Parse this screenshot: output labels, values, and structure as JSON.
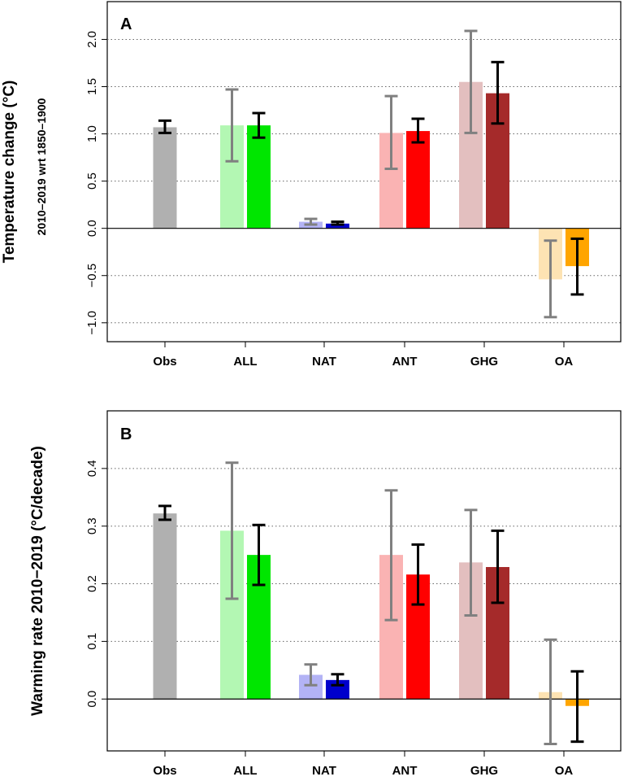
{
  "chart_data": [
    {
      "type": "bar",
      "panel_label": "A",
      "ylabel": "Temperature change (°C)",
      "ylabel_sub": "2010–2019  wrt  1850–1900",
      "ylim": [
        -1.2,
        2.4
      ],
      "yticks": [
        -1.0,
        -0.5,
        0.0,
        0.5,
        1.0,
        1.5,
        2.0
      ],
      "ytick_labels": [
        "−1.0",
        "−0.5",
        "0.0",
        "0.5",
        "1.0",
        "1.5",
        "2.0"
      ],
      "grid": "horizontal dotted",
      "categories": [
        "Obs",
        "ALL",
        "NAT",
        "ANT",
        "GHG",
        "OA"
      ],
      "bars": [
        {
          "category": "Obs",
          "slot": "center",
          "value": 1.07,
          "lo": 1.01,
          "hi": 1.14,
          "color": "#b0b0b0",
          "errcolor": "#000000"
        },
        {
          "category": "ALL",
          "slot": "left",
          "value": 1.09,
          "lo": 0.71,
          "hi": 1.47,
          "color": "#b3f7b3",
          "errcolor": "#808080"
        },
        {
          "category": "ALL",
          "slot": "right",
          "value": 1.09,
          "lo": 0.96,
          "hi": 1.22,
          "color": "#00e600",
          "errcolor": "#000000"
        },
        {
          "category": "NAT",
          "slot": "left",
          "value": 0.07,
          "lo": 0.04,
          "hi": 0.1,
          "color": "#b3b3f5",
          "errcolor": "#808080"
        },
        {
          "category": "NAT",
          "slot": "right",
          "value": 0.05,
          "lo": 0.04,
          "hi": 0.07,
          "color": "#0000cc",
          "errcolor": "#000000"
        },
        {
          "category": "ANT",
          "slot": "left",
          "value": 1.01,
          "lo": 0.63,
          "hi": 1.4,
          "color": "#fab3b3",
          "errcolor": "#808080"
        },
        {
          "category": "ANT",
          "slot": "right",
          "value": 1.03,
          "lo": 0.91,
          "hi": 1.16,
          "color": "#ff0000",
          "errcolor": "#000000"
        },
        {
          "category": "GHG",
          "slot": "left",
          "value": 1.55,
          "lo": 1.01,
          "hi": 2.09,
          "color": "#e3bfbf",
          "errcolor": "#808080"
        },
        {
          "category": "GHG",
          "slot": "right",
          "value": 1.43,
          "lo": 1.11,
          "hi": 1.76,
          "color": "#a52a2a",
          "errcolor": "#000000"
        },
        {
          "category": "OA",
          "slot": "left",
          "value": -0.54,
          "lo": -0.94,
          "hi": -0.13,
          "color": "#fde3b3",
          "errcolor": "#808080"
        },
        {
          "category": "OA",
          "slot": "right",
          "value": -0.4,
          "lo": -0.7,
          "hi": -0.11,
          "color": "#ffa500",
          "errcolor": "#000000"
        }
      ]
    },
    {
      "type": "bar",
      "panel_label": "B",
      "ylabel": "Warming rate 2010−2019 (°C/decade)",
      "ylim": [
        -0.09,
        0.5
      ],
      "yticks": [
        0.0,
        0.1,
        0.2,
        0.3,
        0.4
      ],
      "ytick_labels": [
        "0.0",
        "0.1",
        "0.2",
        "0.3",
        "0.4"
      ],
      "grid": "horizontal dotted",
      "categories": [
        "Obs",
        "ALL",
        "NAT",
        "ANT",
        "GHG",
        "OA"
      ],
      "bars": [
        {
          "category": "Obs",
          "slot": "center",
          "value": 0.322,
          "lo": 0.311,
          "hi": 0.335,
          "color": "#b0b0b0",
          "errcolor": "#000000"
        },
        {
          "category": "ALL",
          "slot": "left",
          "value": 0.292,
          "lo": 0.174,
          "hi": 0.41,
          "color": "#b3f7b3",
          "errcolor": "#808080"
        },
        {
          "category": "ALL",
          "slot": "right",
          "value": 0.25,
          "lo": 0.198,
          "hi": 0.302,
          "color": "#00e600",
          "errcolor": "#000000"
        },
        {
          "category": "NAT",
          "slot": "left",
          "value": 0.042,
          "lo": 0.024,
          "hi": 0.06,
          "color": "#b3b3f5",
          "errcolor": "#808080"
        },
        {
          "category": "NAT",
          "slot": "right",
          "value": 0.033,
          "lo": 0.024,
          "hi": 0.043,
          "color": "#0000cc",
          "errcolor": "#000000"
        },
        {
          "category": "ANT",
          "slot": "left",
          "value": 0.25,
          "lo": 0.137,
          "hi": 0.362,
          "color": "#fab3b3",
          "errcolor": "#808080"
        },
        {
          "category": "ANT",
          "slot": "right",
          "value": 0.216,
          "lo": 0.164,
          "hi": 0.268,
          "color": "#ff0000",
          "errcolor": "#000000"
        },
        {
          "category": "GHG",
          "slot": "left",
          "value": 0.237,
          "lo": 0.145,
          "hi": 0.328,
          "color": "#e3bfbf",
          "errcolor": "#808080"
        },
        {
          "category": "GHG",
          "slot": "right",
          "value": 0.229,
          "lo": 0.167,
          "hi": 0.292,
          "color": "#a52a2a",
          "errcolor": "#000000"
        },
        {
          "category": "OA",
          "slot": "left",
          "value": 0.012,
          "lo": -0.078,
          "hi": 0.103,
          "color": "#fde3b3",
          "errcolor": "#808080"
        },
        {
          "category": "OA",
          "slot": "right",
          "value": -0.012,
          "lo": -0.074,
          "hi": 0.048,
          "color": "#ffa500",
          "errcolor": "#000000"
        }
      ]
    }
  ]
}
